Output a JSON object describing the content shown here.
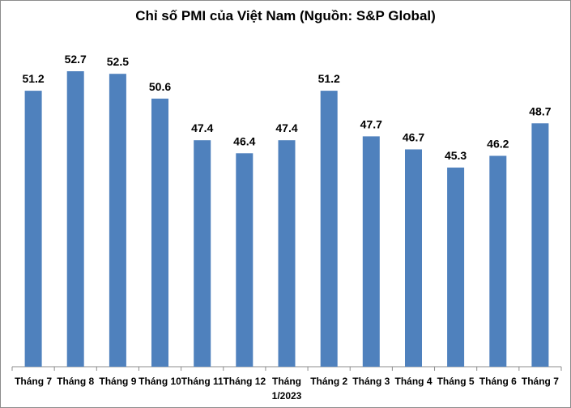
{
  "chart_data": {
    "type": "bar",
    "title": "Chỉ số PMI của Việt Nam (Nguồn: S&P Global)",
    "categories": [
      [
        "Tháng 7"
      ],
      [
        "Tháng 8"
      ],
      [
        "Tháng 9"
      ],
      [
        "Tháng 10"
      ],
      [
        "Tháng 11"
      ],
      [
        "Tháng 12"
      ],
      [
        "Tháng",
        "1/2023"
      ],
      [
        "Tháng 2"
      ],
      [
        "Tháng 3"
      ],
      [
        "Tháng 4"
      ],
      [
        "Tháng 5"
      ],
      [
        "Tháng 6"
      ],
      [
        "Tháng 7"
      ]
    ],
    "values": [
      51.2,
      52.7,
      52.5,
      50.6,
      47.4,
      46.4,
      47.4,
      51.2,
      47.7,
      46.7,
      45.3,
      46.2,
      48.7
    ],
    "data_labels": [
      "51.2",
      "52.7",
      "52.5",
      "50.6",
      "47.4",
      "46.4",
      "47.4",
      "51.2",
      "47.7",
      "46.7",
      "45.3",
      "46.2",
      "48.7"
    ],
    "xlabel": "",
    "ylabel": "",
    "ylim": [
      30,
      53.5
    ],
    "grid": false,
    "legend": "none",
    "bar_color": "#4f81bd"
  }
}
